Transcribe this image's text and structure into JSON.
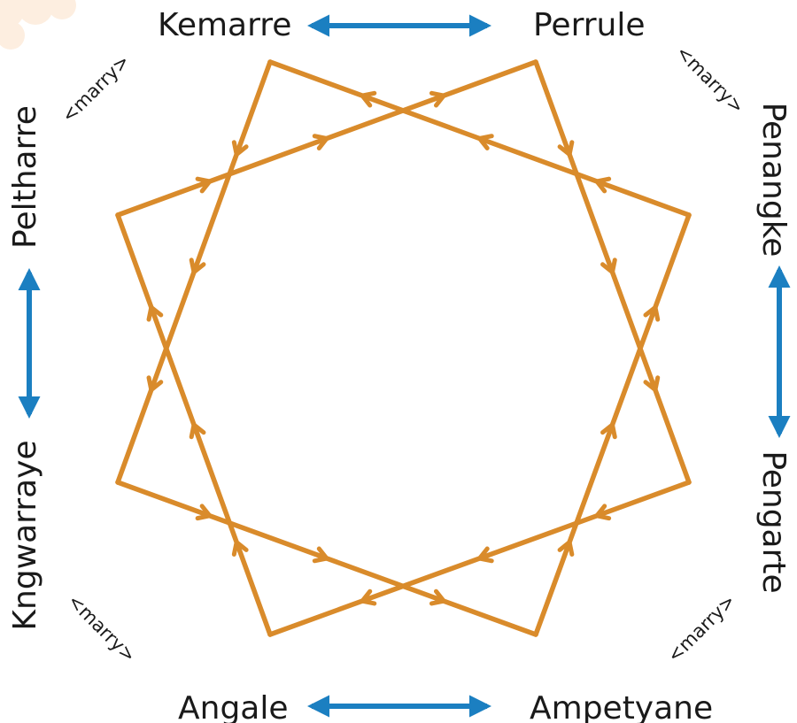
{
  "skins": {
    "kemarre": "Kemarre",
    "perrule": "Perrule",
    "penangke": "Penangke",
    "pengarte": "Pengarte",
    "ampetyane": "Ampetyane",
    "angale": "Angale",
    "kngwarraye": "Kngwarraye",
    "peltharre": "Peltharre"
  },
  "marry_labels": {
    "top_left": "<marry>",
    "top_right": "<marry>",
    "bottom_left": "<marry>",
    "bottom_right": "<marry>"
  },
  "colors": {
    "path": "#d98b2b",
    "arrow": "#1b7fc1",
    "text": "#1a1a1a"
  }
}
